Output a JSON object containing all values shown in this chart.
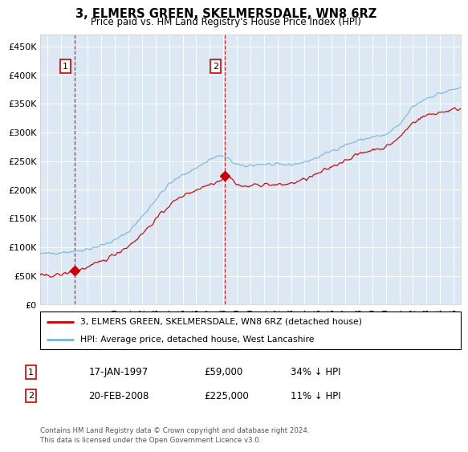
{
  "title": "3, ELMERS GREEN, SKELMERSDALE, WN8 6RZ",
  "subtitle": "Price paid vs. HM Land Registry's House Price Index (HPI)",
  "background_color": "#dce9f5",
  "plot_bg_color": "#dce9f5",
  "hpi_color": "#7ab4d8",
  "price_color": "#cc0000",
  "marker1_date_x": 1997.05,
  "marker2_date_x": 2008.13,
  "marker1_y": 59000,
  "marker2_y": 225000,
  "ylim": [
    0,
    470000
  ],
  "xlim_start": 1994.5,
  "xlim_end": 2025.5,
  "yticks": [
    0,
    50000,
    100000,
    150000,
    200000,
    250000,
    300000,
    350000,
    400000,
    450000
  ],
  "xtick_years": [
    1995,
    1996,
    1997,
    1998,
    1999,
    2000,
    2001,
    2002,
    2003,
    2004,
    2005,
    2006,
    2007,
    2008,
    2009,
    2010,
    2011,
    2012,
    2013,
    2014,
    2015,
    2016,
    2017,
    2018,
    2019,
    2020,
    2021,
    2022,
    2023,
    2024,
    2025
  ],
  "legend_line1": "3, ELMERS GREEN, SKELMERSDALE, WN8 6RZ (detached house)",
  "legend_line2": "HPI: Average price, detached house, West Lancashire",
  "note1_num": "1",
  "note1_date": "17-JAN-1997",
  "note1_price": "£59,000",
  "note1_hpi": "34% ↓ HPI",
  "note2_num": "2",
  "note2_date": "20-FEB-2008",
  "note2_price": "£225,000",
  "note2_hpi": "11% ↓ HPI",
  "footer": "Contains HM Land Registry data © Crown copyright and database right 2024.\nThis data is licensed under the Open Government Licence v3.0."
}
